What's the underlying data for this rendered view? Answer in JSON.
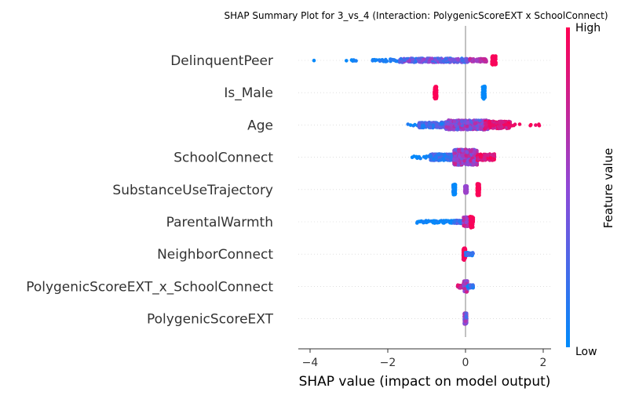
{
  "chart_data": {
    "type": "scatter",
    "title": "SHAP Summary Plot for 3_vs_4 (Interaction: PolygenicScoreEXT x SchoolConnect)",
    "xlabel": "SHAP value (impact on model output)",
    "xlim": [
      -4.2,
      2.2
    ],
    "xticks": [
      -4,
      -2,
      0,
      2
    ],
    "features": [
      "DelinquentPeer",
      "Is_Male",
      "Age",
      "SchoolConnect",
      "SubstanceUseTrajectory",
      "ParentalWarmth",
      "NeighborConnect",
      "PolygenicScoreEXT_x_SchoolConnect",
      "PolygenicScoreEXT"
    ],
    "rows": [
      {
        "feature": "DelinquentPeer",
        "clusters": [
          {
            "min": -3.9,
            "max": -3.9,
            "width": 1,
            "color_lo": 0.0,
            "color_hi": 0.05,
            "n": 1
          },
          {
            "min": -3.25,
            "max": -2.7,
            "width": 1.5,
            "color_lo": 0.0,
            "color_hi": 0.1,
            "n": 6
          },
          {
            "min": -2.4,
            "max": -1.7,
            "width": 3,
            "color_lo": 0.0,
            "color_hi": 0.15,
            "n": 30
          },
          {
            "min": -1.7,
            "max": 0.1,
            "width": 5,
            "color_lo": 0.1,
            "color_hi": 0.6,
            "n": 320
          },
          {
            "min": 0.1,
            "max": 0.55,
            "width": 4,
            "color_lo": 0.55,
            "color_hi": 0.8,
            "n": 60
          },
          {
            "min": 0.68,
            "max": 0.78,
            "width": 11,
            "color_lo": 0.95,
            "color_hi": 1.0,
            "n": 130
          }
        ]
      },
      {
        "feature": "Is_Male",
        "clusters": [
          {
            "min": -0.8,
            "max": -0.74,
            "width": 16,
            "color_lo": 0.97,
            "color_hi": 1.0,
            "n": 90
          },
          {
            "min": 0.44,
            "max": 0.5,
            "width": 16,
            "color_lo": 0.0,
            "color_hi": 0.03,
            "n": 90
          }
        ]
      },
      {
        "feature": "Age",
        "clusters": [
          {
            "min": -1.55,
            "max": -1.1,
            "width": 2,
            "color_lo": 0.0,
            "color_hi": 0.15,
            "n": 8
          },
          {
            "min": -1.2,
            "max": -0.5,
            "width": 7,
            "color_lo": 0.05,
            "color_hi": 0.35,
            "n": 180
          },
          {
            "min": -0.5,
            "max": 0.6,
            "width": 12,
            "color_lo": 0.25,
            "color_hi": 0.75,
            "n": 520
          },
          {
            "min": 0.5,
            "max": 1.15,
            "width": 9,
            "color_lo": 0.7,
            "color_hi": 1.0,
            "n": 240
          },
          {
            "min": 1.15,
            "max": 1.9,
            "width": 2,
            "color_lo": 0.9,
            "color_hi": 1.0,
            "n": 10
          }
        ]
      },
      {
        "feature": "SchoolConnect",
        "clusters": [
          {
            "min": -1.4,
            "max": -0.9,
            "width": 3,
            "color_lo": 0.0,
            "color_hi": 0.1,
            "n": 14
          },
          {
            "min": -0.9,
            "max": -0.3,
            "width": 8,
            "color_lo": 0.05,
            "color_hi": 0.35,
            "n": 200
          },
          {
            "min": -0.3,
            "max": 0.3,
            "width": 20,
            "color_lo": 0.3,
            "color_hi": 0.8,
            "n": 600
          },
          {
            "min": 0.3,
            "max": 0.75,
            "width": 8,
            "color_lo": 0.75,
            "color_hi": 1.0,
            "n": 150
          }
        ]
      },
      {
        "feature": "SubstanceUseTrajectory",
        "clusters": [
          {
            "min": -0.32,
            "max": -0.26,
            "width": 13,
            "color_lo": 0.0,
            "color_hi": 0.05,
            "n": 90
          },
          {
            "min": -0.02,
            "max": 0.04,
            "width": 9,
            "color_lo": 0.5,
            "color_hi": 0.6,
            "n": 50
          },
          {
            "min": 0.3,
            "max": 0.36,
            "width": 15,
            "color_lo": 0.95,
            "color_hi": 1.0,
            "n": 90
          }
        ]
      },
      {
        "feature": "ParentalWarmth",
        "clusters": [
          {
            "min": -1.25,
            "max": -0.3,
            "width": 3,
            "color_lo": 0.0,
            "color_hi": 0.08,
            "n": 70
          },
          {
            "min": -0.3,
            "max": 0.05,
            "width": 4,
            "color_lo": 0.0,
            "color_hi": 0.4,
            "n": 90
          },
          {
            "min": -0.05,
            "max": 0.15,
            "width": 12,
            "color_lo": 0.4,
            "color_hi": 0.85,
            "n": 140
          },
          {
            "min": 0.12,
            "max": 0.2,
            "width": 15,
            "color_lo": 0.9,
            "color_hi": 1.0,
            "n": 80
          }
        ]
      },
      {
        "feature": "NeighborConnect",
        "clusters": [
          {
            "min": -0.06,
            "max": 0.0,
            "width": 15,
            "color_lo": 0.9,
            "color_hi": 1.0,
            "n": 120
          },
          {
            "min": 0.0,
            "max": 0.2,
            "width": 4,
            "color_lo": 0.0,
            "color_hi": 0.35,
            "n": 40
          }
        ]
      },
      {
        "feature": "PolygenicScoreEXT_x_SchoolConnect",
        "clusters": [
          {
            "min": -0.2,
            "max": -0.05,
            "width": 4,
            "color_lo": 0.7,
            "color_hi": 1.0,
            "n": 30
          },
          {
            "min": -0.05,
            "max": 0.05,
            "width": 14,
            "color_lo": 0.3,
            "color_hi": 0.8,
            "n": 150
          },
          {
            "min": 0.05,
            "max": 0.2,
            "width": 4,
            "color_lo": 0.0,
            "color_hi": 0.3,
            "n": 30
          }
        ]
      },
      {
        "feature": "PolygenicScoreEXT",
        "clusters": [
          {
            "min": -0.03,
            "max": 0.03,
            "width": 14,
            "color_lo": 0.2,
            "color_hi": 0.8,
            "n": 180
          }
        ]
      }
    ],
    "colorbar": {
      "label": "Feature value",
      "high_label": "High",
      "low_label": "Low",
      "low_color": "#008bfb",
      "mid_color": "#8f49d7",
      "high_color": "#ff0052"
    },
    "grid": false,
    "legend": "colorbar-right"
  }
}
